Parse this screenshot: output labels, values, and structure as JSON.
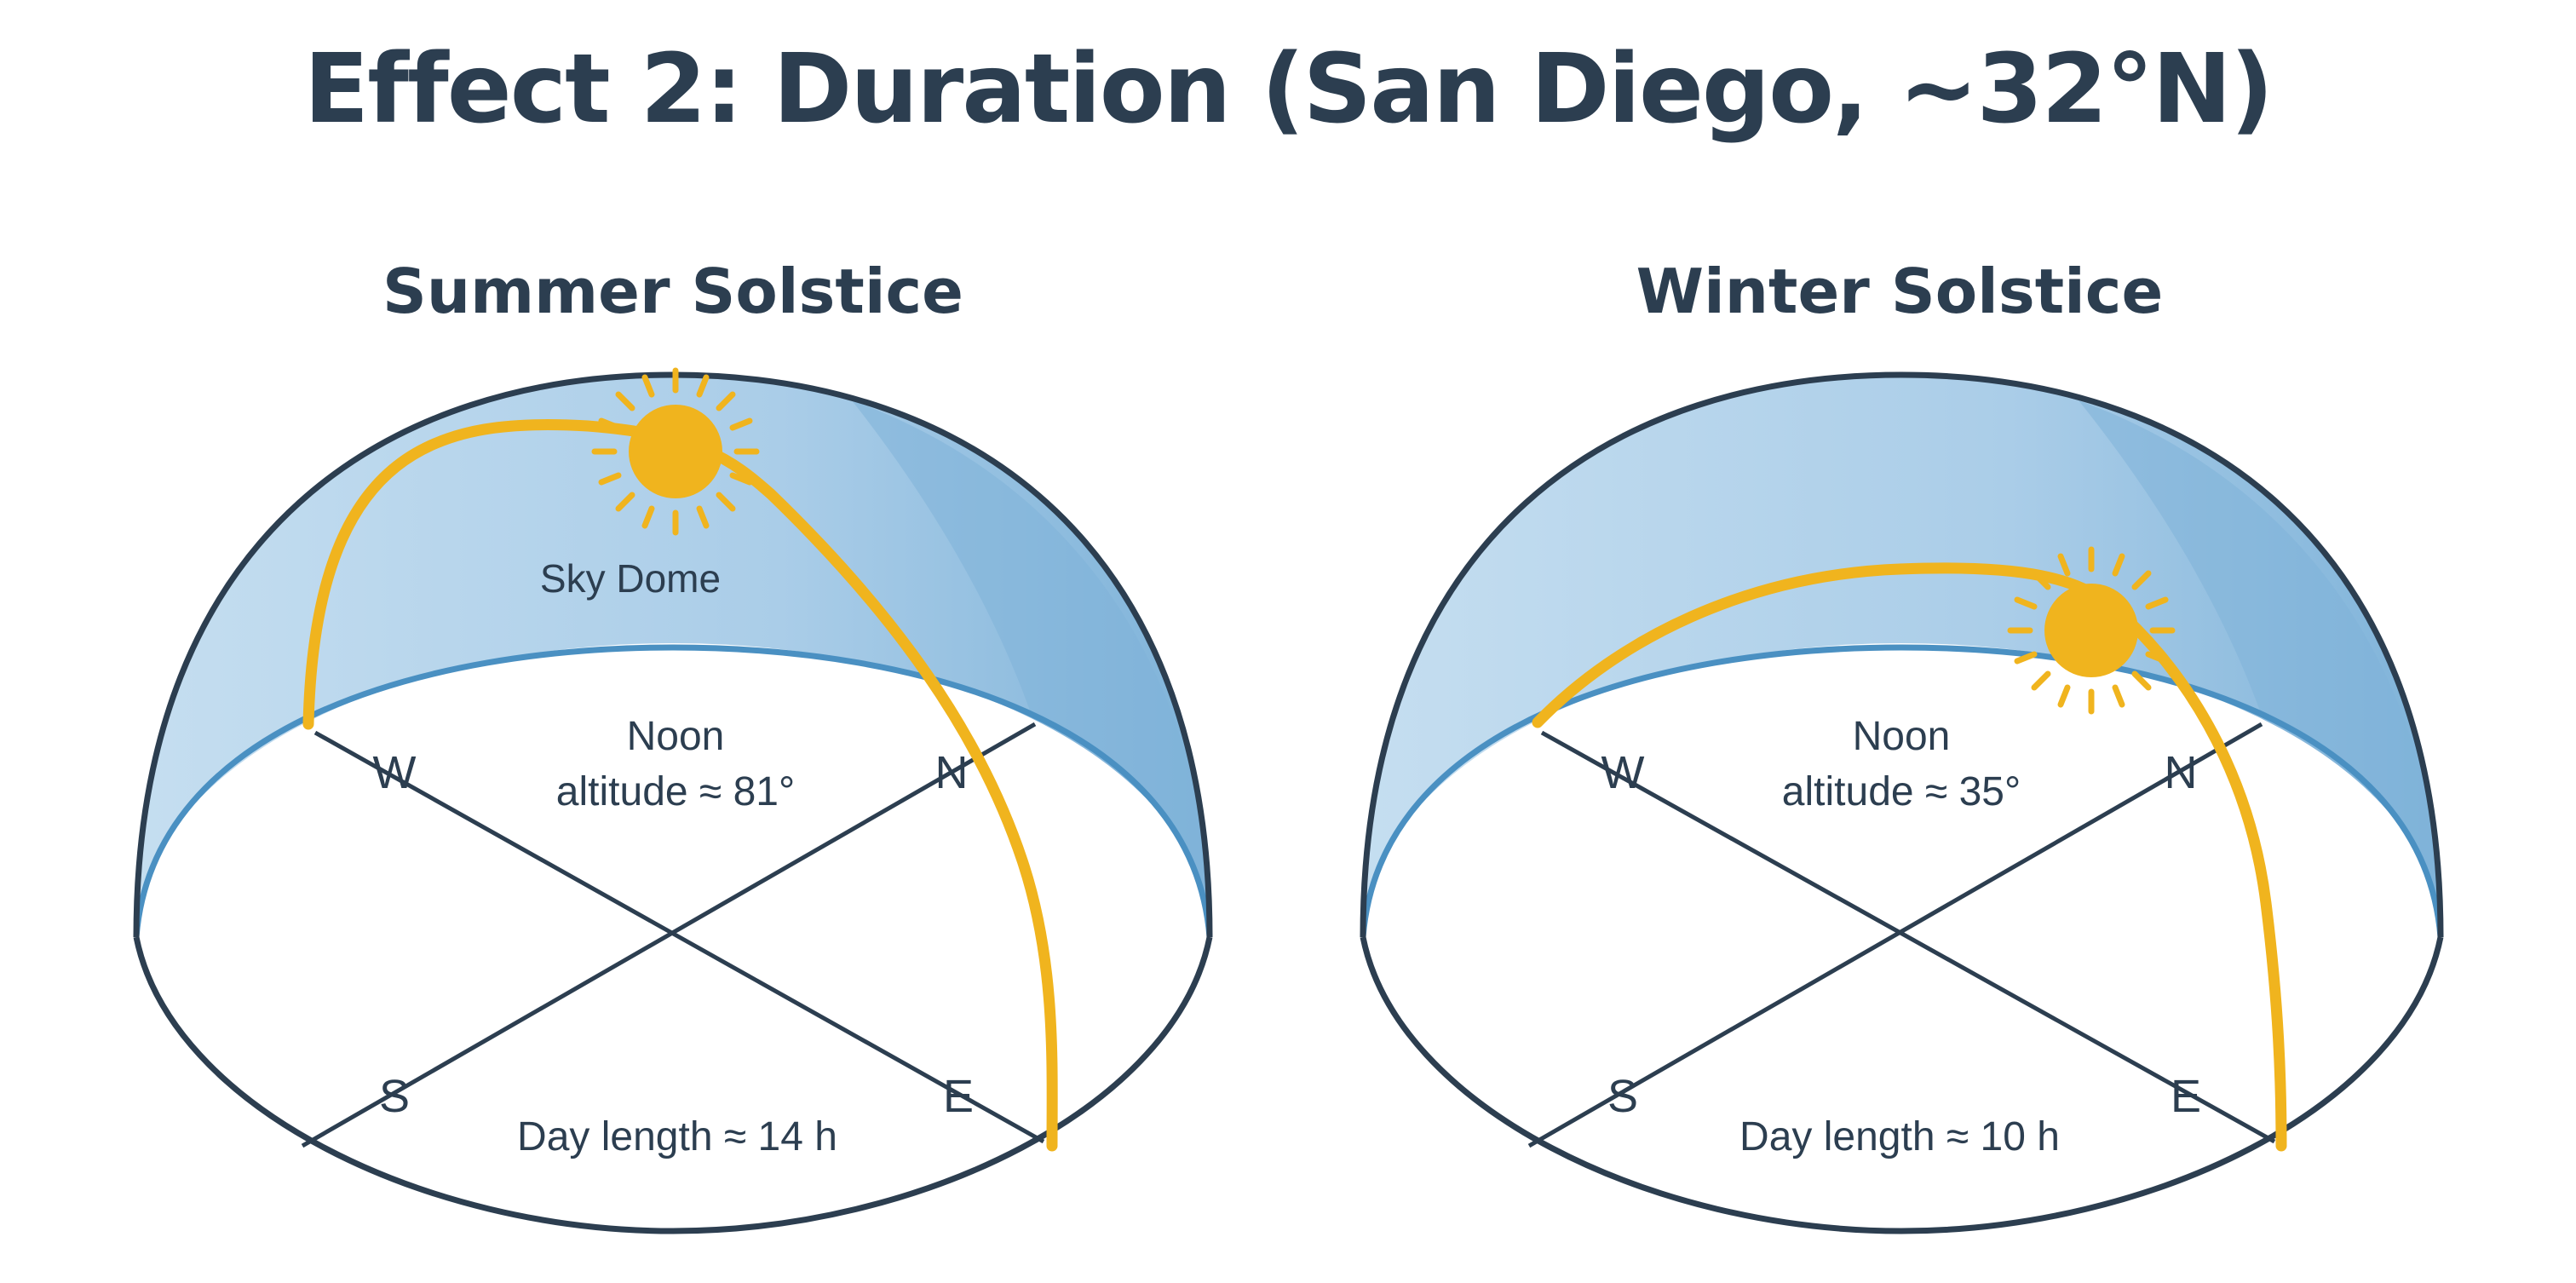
{
  "title": "Effect 2: Duration (San Diego, ~32°N)",
  "colors": {
    "dome_light": "#b8d6ec",
    "dome_dark": "#7fb3d9",
    "dome_outline": "#2c3e50",
    "horizon_line": "#4a90c2",
    "sun": "#f0b41e",
    "text": "#2c3e50"
  },
  "panels": {
    "summer": {
      "title": "Summer Solstice",
      "dome_label": "Sky Dome",
      "noon_line1": "Noon",
      "noon_line2": "altitude ≈ 81°",
      "day_length": "Day length ≈ 14 h",
      "dir_w": "W",
      "dir_n": "N",
      "dir_s": "S",
      "dir_e": "E"
    },
    "winter": {
      "title": "Winter Solstice",
      "noon_line1": "Noon",
      "noon_line2": "altitude ≈ 35°",
      "day_length": "Day length ≈ 10 h",
      "dir_w": "W",
      "dir_n": "N",
      "dir_s": "S",
      "dir_e": "E"
    }
  }
}
